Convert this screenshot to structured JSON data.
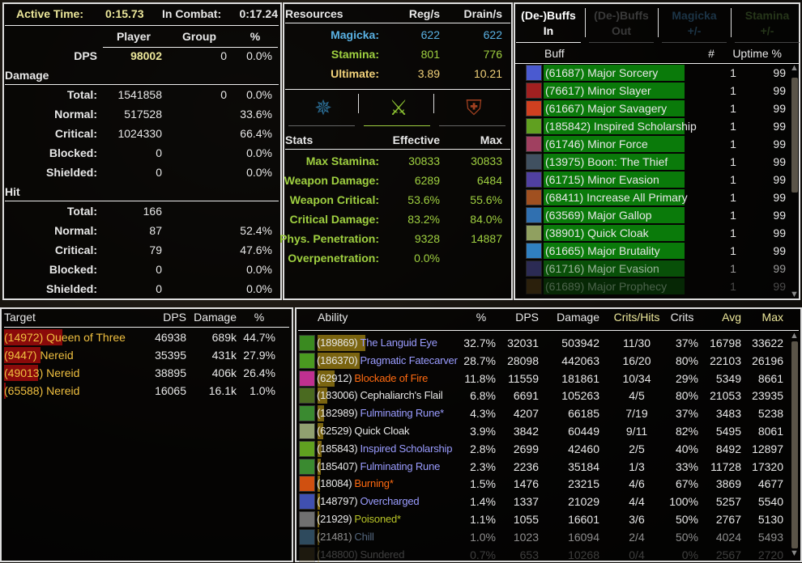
{
  "colors": {
    "header": "#ece79a",
    "magicka": "#5ab2e4",
    "stamina": "#9fd040",
    "ultimate": "#f2d27a",
    "buff_bar": "#0a7a0a",
    "target_bar": "#8a0a0a",
    "ability_bar": "#7a6410",
    "magic": "#9a9cff",
    "fire": "#ff6a10",
    "physical": "#e8e8e8",
    "poison": "#b8c428",
    "frost": "#8aaad0"
  },
  "overview": {
    "active_time_label": "Active Time:",
    "active_time": "0:15.73",
    "in_combat_label": "In Combat:",
    "in_combat": "0:17.24",
    "col_player": "Player",
    "col_group": "Group",
    "col_pct": "%",
    "dps_label": "DPS",
    "dps_player": "98002",
    "dps_group": "0",
    "dps_pct": "0.0%",
    "damage_title": "Damage",
    "damage_rows": [
      {
        "label": "Total:",
        "player": "1541858",
        "group": "0",
        "pct": "0.0%"
      },
      {
        "label": "Normal:",
        "player": "517528",
        "group": "",
        "pct": "33.6%"
      },
      {
        "label": "Critical:",
        "player": "1024330",
        "group": "",
        "pct": "66.4%"
      },
      {
        "label": "Blocked:",
        "player": "0",
        "group": "",
        "pct": "0.0%"
      },
      {
        "label": "Shielded:",
        "player": "0",
        "group": "",
        "pct": "0.0%"
      }
    ],
    "hit_title": "Hit",
    "hit_rows": [
      {
        "label": "Total:",
        "player": "166",
        "group": "",
        "pct": ""
      },
      {
        "label": "Normal:",
        "player": "87",
        "group": "",
        "pct": "52.4%"
      },
      {
        "label": "Critical:",
        "player": "79",
        "group": "",
        "pct": "47.6%"
      },
      {
        "label": "Blocked:",
        "player": "0",
        "group": "",
        "pct": "0.0%"
      },
      {
        "label": "Shielded:",
        "player": "0",
        "group": "",
        "pct": "0.0%"
      }
    ]
  },
  "resources": {
    "title": "Resources",
    "col_reg": "Reg/s",
    "col_drain": "Drain/s",
    "rows": [
      {
        "label": "Magicka:",
        "reg": "622",
        "drain": "622",
        "color": "magicka"
      },
      {
        "label": "Stamina:",
        "reg": "801",
        "drain": "776",
        "color": "stamina"
      },
      {
        "label": "Ultimate:",
        "reg": "3.89",
        "drain": "10.21",
        "color": "ultimate"
      }
    ],
    "stat_tabs": [
      {
        "icon": "magicka-spell-icon",
        "selected": false
      },
      {
        "icon": "stamina-weapon-icon",
        "selected": true
      },
      {
        "icon": "resistance-shield-icon",
        "selected": false
      }
    ]
  },
  "stats": {
    "title": "Stats",
    "col_effective": "Effective",
    "col_max": "Max",
    "rows": [
      {
        "label": "Max Stamina:",
        "effective": "30833",
        "max": "30833"
      },
      {
        "label": "Weapon Damage:",
        "effective": "6289",
        "max": "6484"
      },
      {
        "label": "Weapon Critical:",
        "effective": "53.6%",
        "max": "55.6%"
      },
      {
        "label": "Critical Damage:",
        "effective": "83.2%",
        "max": "84.0%"
      },
      {
        "label": "Phys. Penetration:",
        "effective": "9328",
        "max": "14887"
      },
      {
        "label": "Overpenetration:",
        "effective": "0.0%",
        "max": ""
      }
    ]
  },
  "buffs": {
    "tabs": [
      {
        "line1": "(De-)Buffs",
        "line2": "In",
        "selected": true,
        "color": "#ffffff"
      },
      {
        "line1": "(De-)Buffs",
        "line2": "Out",
        "selected": false,
        "color": "#3a3a3a"
      },
      {
        "line1": "Magicka",
        "line2": "+/-",
        "selected": false,
        "color": "#1c3446"
      },
      {
        "line1": "Stamina",
        "line2": "+/-",
        "selected": false,
        "color": "#26361a"
      }
    ],
    "col_buff": "Buff",
    "col_count": "#",
    "col_uptime": "Uptime %",
    "rows": [
      {
        "name": "(61687) Major Sorcery",
        "count": "1",
        "uptime": "99",
        "icon": "#4a5ad0"
      },
      {
        "name": "(76617) Minor Slayer",
        "count": "1",
        "uptime": "99",
        "icon": "#a02020"
      },
      {
        "name": "(61667) Major Savagery",
        "count": "1",
        "uptime": "99",
        "icon": "#d04020"
      },
      {
        "name": "(185842) Inspired Scholarship",
        "count": "1",
        "uptime": "99",
        "icon": "#60a020"
      },
      {
        "name": "(61746) Minor Force",
        "count": "1",
        "uptime": "99",
        "icon": "#a04060"
      },
      {
        "name": "(13975) Boon: The Thief",
        "count": "1",
        "uptime": "99",
        "icon": "#405060"
      },
      {
        "name": "(61715) Minor Evasion",
        "count": "1",
        "uptime": "99",
        "icon": "#5040a0"
      },
      {
        "name": "(68411) Increase All Primary",
        "count": "1",
        "uptime": "99",
        "icon": "#a05020"
      },
      {
        "name": "(63569) Major Gallop",
        "count": "1",
        "uptime": "99",
        "icon": "#3070b0"
      },
      {
        "name": "(38901) Quick Cloak",
        "count": "1",
        "uptime": "99",
        "icon": "#90a060"
      },
      {
        "name": "(61665) Major Brutality",
        "count": "1",
        "uptime": "99",
        "icon": "#3080c0"
      },
      {
        "name": "(61716) Major Evasion",
        "count": "1",
        "uptime": "99",
        "icon": "#404080"
      },
      {
        "name": "(61689) Major Prophecy",
        "count": "1",
        "uptime": "99",
        "icon": "#806020"
      }
    ]
  },
  "targets": {
    "col_target": "Target",
    "col_dps": "DPS",
    "col_damage": "Damage",
    "col_pct": "%",
    "rows": [
      {
        "name": "(14972) Queen of Three",
        "dps": "46938",
        "damage": "689k",
        "pct": "44.7%",
        "share": 44.7
      },
      {
        "name": "(9447) Nereid",
        "dps": "35395",
        "damage": "431k",
        "pct": "27.9%",
        "share": 27.9
      },
      {
        "name": "(49013) Nereid",
        "dps": "38895",
        "damage": "406k",
        "pct": "26.4%",
        "share": 26.4
      },
      {
        "name": "(65588) Nereid",
        "dps": "16065",
        "damage": "16.1k",
        "pct": "1.0%",
        "share": 1.0
      }
    ]
  },
  "abilities": {
    "col_ability": "Ability",
    "col_pct": "%",
    "col_dps": "DPS",
    "col_damage": "Damage",
    "col_crits_hits": "Crits/Hits",
    "col_crits": "Crits",
    "col_avg": "Avg",
    "col_max": "Max",
    "rows": [
      {
        "id": "(189869)",
        "name": "The Languid Eye",
        "type": "magic",
        "pct": "32.7%",
        "share": 32.7,
        "dps": "32031",
        "damage": "503942",
        "crits_hits": "11/30",
        "crits": "37%",
        "avg": "16798",
        "max": "33622",
        "icon": "#3a8a20"
      },
      {
        "id": "(186370)",
        "name": "Pragmatic Fatecarver",
        "type": "magic",
        "pct": "28.7%",
        "share": 28.7,
        "dps": "28098",
        "damage": "442063",
        "crits_hits": "16/20",
        "crits": "80%",
        "avg": "22103",
        "max": "26196",
        "icon": "#4a9a20"
      },
      {
        "id": "(62912)",
        "name": "Blockade of Fire",
        "type": "fire",
        "pct": "11.8%",
        "share": 11.8,
        "dps": "11559",
        "damage": "181861",
        "crits_hits": "10/34",
        "crits": "29%",
        "avg": "5349",
        "max": "8661",
        "icon": "#c03090"
      },
      {
        "id": "(183006)",
        "name": "Cephaliarch's Flail",
        "type": "physical",
        "pct": "6.8%",
        "share": 6.8,
        "dps": "6691",
        "damage": "105263",
        "crits_hits": "4/5",
        "crits": "80%",
        "avg": "21053",
        "max": "23935",
        "icon": "#4a6a20"
      },
      {
        "id": "(182989)",
        "name": "Fulminating Rune*",
        "type": "magic",
        "pct": "4.3%",
        "share": 4.3,
        "dps": "4207",
        "damage": "66185",
        "crits_hits": "7/19",
        "crits": "37%",
        "avg": "3483",
        "max": "5238",
        "icon": "#3a8a30"
      },
      {
        "id": "(62529)",
        "name": "Quick Cloak",
        "type": "physical",
        "pct": "3.9%",
        "share": 3.9,
        "dps": "3842",
        "damage": "60449",
        "crits_hits": "9/11",
        "crits": "82%",
        "avg": "5495",
        "max": "8061",
        "icon": "#90a070"
      },
      {
        "id": "(185843)",
        "name": "Inspired Scholarship",
        "type": "magic",
        "pct": "2.8%",
        "share": 2.8,
        "dps": "2699",
        "damage": "42460",
        "crits_hits": "2/5",
        "crits": "40%",
        "avg": "8492",
        "max": "12897",
        "icon": "#60a020"
      },
      {
        "id": "(185407)",
        "name": "Fulminating Rune",
        "type": "magic",
        "pct": "2.3%",
        "share": 2.3,
        "dps": "2236",
        "damage": "35184",
        "crits_hits": "1/3",
        "crits": "33%",
        "avg": "11728",
        "max": "17320",
        "icon": "#3a8a30"
      },
      {
        "id": "(18084)",
        "name": "Burning*",
        "type": "fire",
        "pct": "1.5%",
        "share": 1.5,
        "dps": "1476",
        "damage": "23215",
        "crits_hits": "4/6",
        "crits": "67%",
        "avg": "3869",
        "max": "4677",
        "icon": "#d05010"
      },
      {
        "id": "(148797)",
        "name": "Overcharged",
        "type": "magic",
        "pct": "1.4%",
        "share": 1.4,
        "dps": "1337",
        "damage": "21029",
        "crits_hits": "4/4",
        "crits": "100%",
        "avg": "5257",
        "max": "5540",
        "icon": "#4050b0"
      },
      {
        "id": "(21929)",
        "name": "Poisoned*",
        "type": "poison",
        "pct": "1.1%",
        "share": 1.1,
        "dps": "1055",
        "damage": "16601",
        "crits_hits": "3/6",
        "crits": "50%",
        "avg": "2767",
        "max": "5130",
        "icon": "#707070"
      },
      {
        "id": "(21481)",
        "name": "Chill",
        "type": "frost",
        "pct": "1.0%",
        "share": 1.0,
        "dps": "1023",
        "damage": "16094",
        "crits_hits": "2/4",
        "crits": "50%",
        "avg": "4024",
        "max": "5493",
        "icon": "#4a7a9a"
      },
      {
        "id": "(148800)",
        "name": "Sundered",
        "type": "physical",
        "pct": "0.7%",
        "share": 0.7,
        "dps": "653",
        "damage": "10268",
        "crits_hits": "0/4",
        "crits": "0%",
        "avg": "2567",
        "max": "2720",
        "icon": "#6a5a30"
      }
    ]
  }
}
